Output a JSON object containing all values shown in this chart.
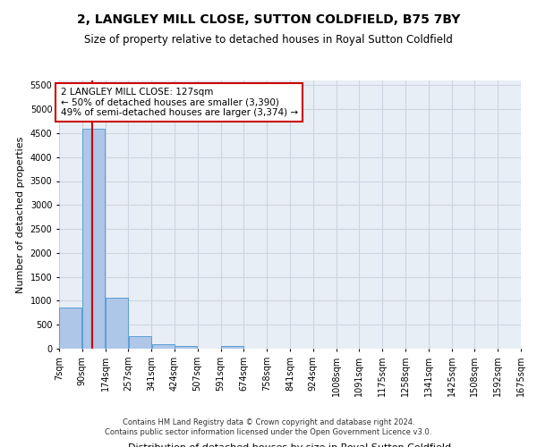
{
  "title": "2, LANGLEY MILL CLOSE, SUTTON COLDFIELD, B75 7BY",
  "subtitle": "Size of property relative to detached houses in Royal Sutton Coldfield",
  "xlabel": "Distribution of detached houses by size in Royal Sutton Coldfield",
  "ylabel": "Number of detached properties",
  "footnote1": "Contains HM Land Registry data © Crown copyright and database right 2024.",
  "footnote2": "Contains public sector information licensed under the Open Government Licence v3.0.",
  "bar_edges": [
    7,
    90,
    174,
    257,
    341,
    424,
    507,
    591,
    674,
    758,
    841,
    924,
    1008,
    1091,
    1175,
    1258,
    1341,
    1425,
    1508,
    1592,
    1675
  ],
  "bar_heights": [
    850,
    4600,
    1060,
    270,
    85,
    65,
    0,
    55,
    0,
    0,
    0,
    0,
    0,
    0,
    0,
    0,
    0,
    0,
    0,
    0
  ],
  "bar_color": "#aec6e8",
  "bar_edge_color": "#5a9fd4",
  "property_size": 127,
  "property_line_color": "#cc0000",
  "annotation_line1": "2 LANGLEY MILL CLOSE: 127sqm",
  "annotation_line2": "← 50% of detached houses are smaller (3,390)",
  "annotation_line3": "49% of semi-detached houses are larger (3,374) →",
  "annotation_box_color": "#cc0000",
  "ylim": [
    0,
    5600
  ],
  "yticks": [
    0,
    500,
    1000,
    1500,
    2000,
    2500,
    3000,
    3500,
    4000,
    4500,
    5000,
    5500
  ],
  "grid_color": "#cdd5e3",
  "bg_color": "#e8eef5",
  "title_fontsize": 10,
  "subtitle_fontsize": 8.5,
  "ylabel_fontsize": 8,
  "xlabel_fontsize": 8,
  "tick_fontsize": 7,
  "annotation_fontsize": 7.5,
  "footnote_fontsize": 6
}
